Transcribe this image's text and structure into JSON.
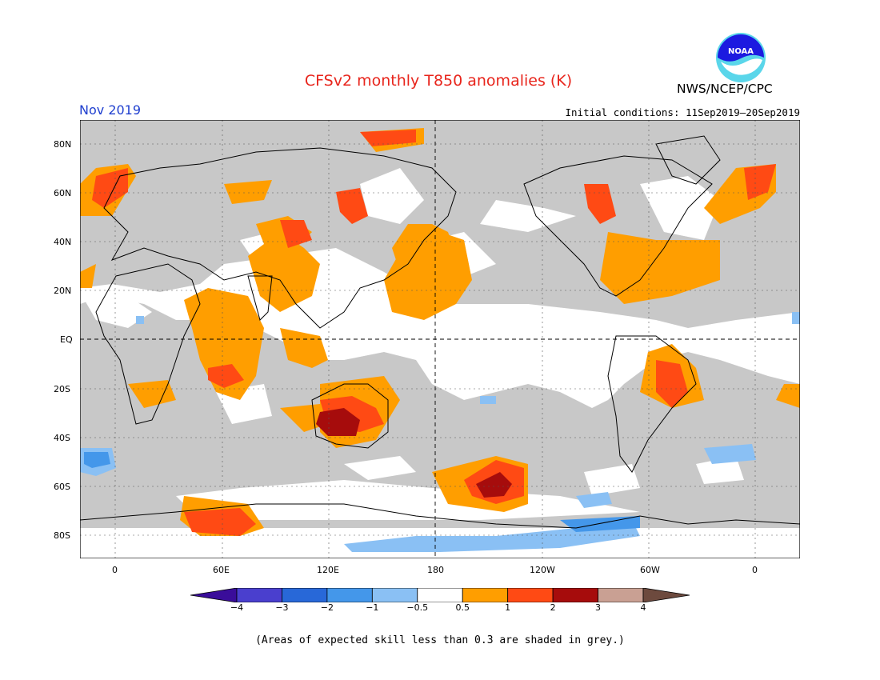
{
  "title": "CFSv2 monthly T850 anomalies (K)",
  "valid_month": "Nov 2019",
  "initial_conditions": "Initial conditions: 11Sep2019–20Sep2019",
  "agency": "NWS/NCEP/CPC",
  "logo_text": "NOAA",
  "lat_labels": [
    "80N",
    "60N",
    "40N",
    "20N",
    "EQ",
    "20S",
    "40S",
    "60S",
    "80S"
  ],
  "lon_labels": [
    "0",
    "60E",
    "120E",
    "180",
    "120W",
    "60W",
    "0"
  ],
  "colorbar": {
    "ticks": [
      "−4",
      "−3",
      "−2",
      "−1",
      "−0.5",
      "0.5",
      "1",
      "2",
      "3",
      "4"
    ],
    "colors": [
      "#3a0d9a",
      "#4a3fce",
      "#2868d8",
      "#4497ea",
      "#8ac0f4",
      "#ffffff",
      "#ff9e00",
      "#ff4a14",
      "#a60c0c",
      "#c9a093",
      "#6d4a3e"
    ]
  },
  "footnote": "(Areas of expected skill less than 0.3 are shaded in grey.)",
  "palette": {
    "grey": "#c8c8c8",
    "white": "#ffffff",
    "orange": "#ff9e00",
    "red": "#ff4a14",
    "darkred": "#a60c0c",
    "lightblue": "#8ac0f4",
    "blue": "#4497ea"
  }
}
